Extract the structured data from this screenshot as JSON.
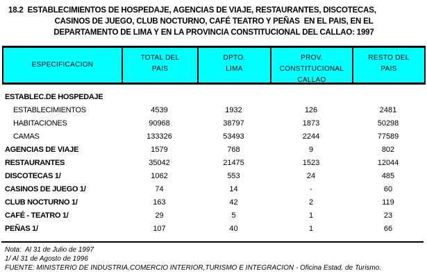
{
  "title": {
    "line1": "18.2  ESTABLECIMIENTOS DE HOSPEDAJE, AGENCIAS DE VIAJE, RESTAURANTES, DISCOTECAS,",
    "line2": "CASINOS DE JUEGO, CLUB NOCTURNO, CAFÉ TEATRO Y PEÑAS  EN EL PAIS, EN EL",
    "line3": "DEPARTAMENTO DE LIMA Y EN LA PROVINCIA CONSTITUCIONAL DEL CALLAO: 1997"
  },
  "table": {
    "headers": [
      {
        "id": "especificacion",
        "lines": [
          "ESPECIFICACION"
        ]
      },
      {
        "id": "total-del-pais",
        "lines": [
          "TOTAL DEL",
          "PAIS"
        ]
      },
      {
        "id": "dpto-lima",
        "lines": [
          "DPTO.",
          "LIMA"
        ]
      },
      {
        "id": "prov-constitucional-callao",
        "lines": [
          "PROV.",
          "CONSTITUCIONAL",
          "CALLAO"
        ]
      },
      {
        "id": "resto-del-pais",
        "lines": [
          "RESTO DEL",
          "PAIS"
        ]
      }
    ],
    "rows": [
      {
        "label": "ESTABLEC.DE HOSPEDAJE",
        "style": "section",
        "values": [
          "",
          "",
          "",
          ""
        ]
      },
      {
        "label": "ESTABLECIMIENTOS",
        "style": "sub",
        "values": [
          "4539",
          "1932",
          "126",
          "2481"
        ]
      },
      {
        "label": "HABITACIONES",
        "style": "sub",
        "values": [
          "90968",
          "38797",
          "1873",
          "50298"
        ]
      },
      {
        "label": "CAMAS",
        "style": "sub",
        "values": [
          "133326",
          "53493",
          "2244",
          "77589"
        ]
      },
      {
        "label": "AGENCIAS DE VIAJE",
        "style": "section",
        "values": [
          "1579",
          "768",
          "9",
          "802"
        ]
      },
      {
        "label": "RESTAURANTES",
        "style": "section",
        "values": [
          "35042",
          "21475",
          "1523",
          "12044"
        ]
      },
      {
        "label": "DISCOTECAS 1/",
        "style": "section",
        "values": [
          "1062",
          "553",
          "24",
          "485"
        ]
      },
      {
        "label": "CASINOS DE JUEGO 1/",
        "style": "section",
        "values": [
          "74",
          "14",
          "-",
          "60"
        ]
      },
      {
        "label": "CLUB NOCTURNO 1/",
        "style": "section",
        "values": [
          "163",
          "42",
          "2",
          "119"
        ]
      },
      {
        "label": "CAFÉ - TEATRO 1/",
        "style": "section",
        "values": [
          "29",
          "5",
          "1",
          "23"
        ]
      },
      {
        "label": "PEÑAS 1/",
        "style": "section",
        "values": [
          "107",
          "40",
          "1",
          "66"
        ]
      }
    ]
  },
  "notes": [
    "Nota:  Al 31 de Julio de 1997",
    "1/ Al 31 de Agosto de 1996",
    "FUENTE: MINISTERIO DE INDUSTRIA,COMERCIO INTERIOR,TURISMO E INTEGRACION - Oficina Estad. de Turismo."
  ],
  "colors": {
    "header_bg": "#00FFFF",
    "border": "#000000",
    "text": "#000000",
    "page_bg": "#FFFFFF"
  }
}
